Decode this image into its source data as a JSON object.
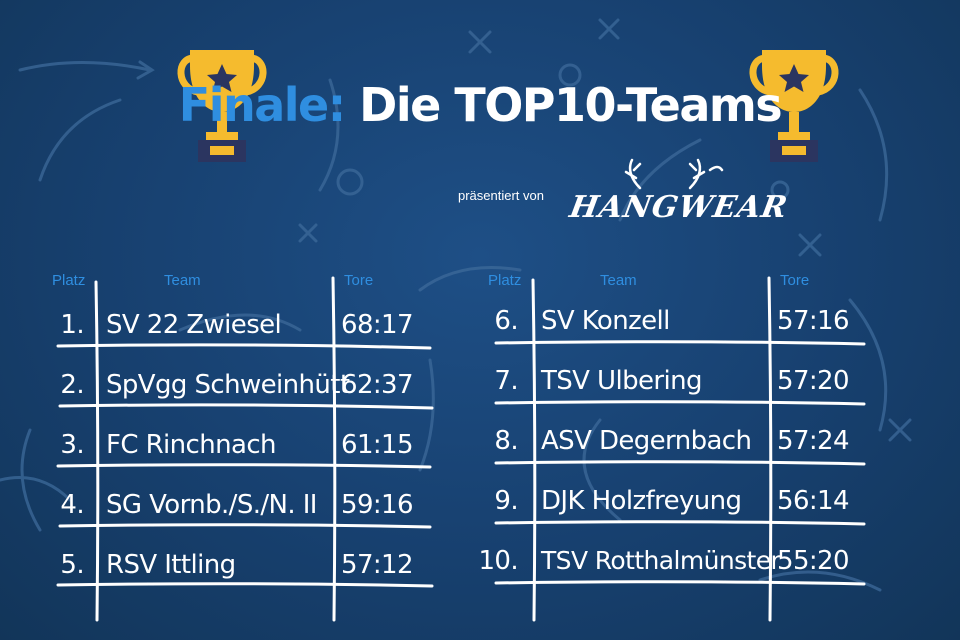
{
  "title": {
    "accent": "Finale:",
    "main": "Die TOP10-Teams"
  },
  "sponsor": {
    "presented_by": "präsentiert von",
    "logo_text": "HANGWEAR"
  },
  "columns": {
    "platz": "Platz",
    "team": "Team",
    "tore": "Tore"
  },
  "left_table": [
    {
      "platz": "1.",
      "team": "SV 22 Zwiesel",
      "tore": "68:17"
    },
    {
      "platz": "2.",
      "team": "SpVgg Schweinhütt",
      "tore": "62:37"
    },
    {
      "platz": "3.",
      "team": "FC Rinchnach",
      "tore": "61:15"
    },
    {
      "platz": "4.",
      "team": "SG Vornb./S./N. II",
      "tore": "59:16"
    },
    {
      "platz": "5.",
      "team": "RSV Ittling",
      "tore": "57:12"
    }
  ],
  "right_table": [
    {
      "platz": "6.",
      "team": "SV Konzell",
      "tore": "57:16"
    },
    {
      "platz": "7.",
      "team": "TSV Ulbering",
      "tore": "57:20"
    },
    {
      "platz": "8.",
      "team": "ASV Degernbach",
      "tore": "57:24"
    },
    {
      "platz": "9.",
      "team": "DJK Holzfreyung",
      "tore": "56:14"
    },
    {
      "platz": "10.",
      "team": "TSV Rotthalmünster",
      "tore": "55:20"
    }
  ],
  "colors": {
    "background": "#17406f",
    "accent": "#2f8ee0",
    "trophy_gold": "#f5bb2e",
    "trophy_base": "#2b3560"
  },
  "icons": [
    "trophy-icon",
    "trophy-icon"
  ]
}
